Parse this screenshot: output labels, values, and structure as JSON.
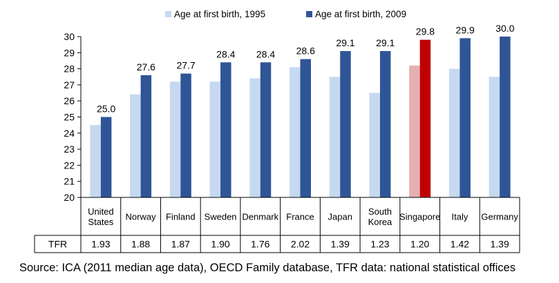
{
  "chart_data": {
    "type": "bar",
    "legend": {
      "position": "top"
    },
    "categories": [
      "United States",
      "Norway",
      "Finland",
      "Sweden",
      "Denmark",
      "France",
      "Japan",
      "South Korea",
      "Singapore",
      "Italy",
      "Germany"
    ],
    "category_labels": [
      [
        "United",
        "States"
      ],
      [
        "Norway"
      ],
      [
        "Finland"
      ],
      [
        "Sweden"
      ],
      [
        "Denmark"
      ],
      [
        "France"
      ],
      [
        "Japan"
      ],
      [
        "South",
        "Korea"
      ],
      [
        "Singapore"
      ],
      [
        "Italy"
      ],
      [
        "Germany"
      ]
    ],
    "series": [
      {
        "name": "Age at first birth, 1995",
        "values": [
          24.5,
          26.4,
          27.2,
          27.2,
          27.4,
          28.1,
          27.5,
          26.5,
          28.2,
          28.0,
          27.5
        ],
        "color": "#c6d9f1",
        "highlight_color": "#e6b0b0",
        "show_labels": false
      },
      {
        "name": "Age at first birth, 2009",
        "values": [
          25.0,
          27.6,
          27.7,
          28.4,
          28.4,
          28.6,
          29.1,
          29.1,
          29.8,
          29.9,
          30.0
        ],
        "data_labels": [
          "25.0",
          "27.6",
          "27.7",
          "28.4",
          "28.4",
          "28.6",
          "29.1",
          "29.1",
          "29.8",
          "29.9",
          "30.0"
        ],
        "color": "#2f5597",
        "highlight_color": "#c00000",
        "show_labels": true
      }
    ],
    "highlight_category": "Singapore",
    "ylim": [
      20,
      30
    ],
    "yticks": [
      "20",
      "21",
      "22",
      "23",
      "24",
      "25",
      "26",
      "27",
      "28",
      "29",
      "30"
    ],
    "grid": false,
    "table": {
      "row_label": "TFR",
      "values": [
        "1.93",
        "1.88",
        "1.87",
        "1.90",
        "1.76",
        "2.02",
        "1.39",
        "1.23",
        "1.20",
        "1.42",
        "1.39"
      ]
    }
  },
  "source": "Source: ICA (2011 median age data), OECD Family database, TFR data: national statistical offices"
}
